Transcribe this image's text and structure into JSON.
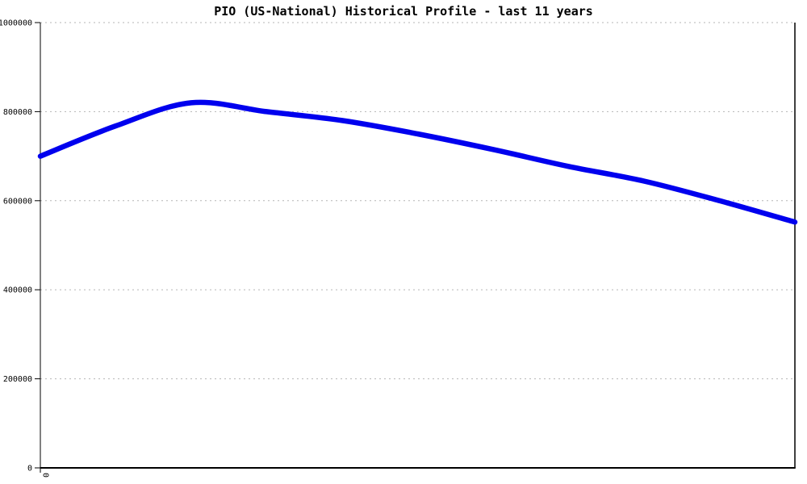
{
  "chart_data": {
    "type": "line",
    "title": "PIO (US-National) Historical Profile - last 11 years",
    "subtitle": "",
    "xlabel": "",
    "ylabel": "",
    "x": [
      0,
      1,
      2,
      3,
      4,
      5,
      6,
      7,
      8,
      9,
      10
    ],
    "series": [
      {
        "name": "PIO historical profile",
        "values": [
          700000,
          768000,
          820000,
          800000,
          780000,
          750000,
          715000,
          677000,
          644000,
          600000,
          552000
        ]
      }
    ],
    "ylim": [
      0,
      1000000
    ],
    "y_ticks": [
      0,
      200000,
      400000,
      600000,
      800000,
      1000000
    ],
    "y_tick_labels": [
      "0",
      "200000",
      "400000",
      "600000",
      "800000",
      "1000000"
    ],
    "x_tick_labels": [
      "0"
    ],
    "grid": "horizontal-dashed",
    "legend_position": "none",
    "smoothing": "spline",
    "line_width": 6.5
  },
  "colors": {
    "line": "#0000ee",
    "grid": "#b5b5b5",
    "axis": "#000000",
    "background": "#ffffff",
    "text": "#000000"
  }
}
